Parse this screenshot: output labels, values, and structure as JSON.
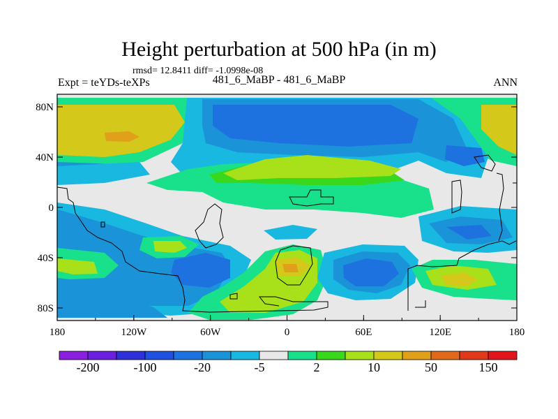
{
  "title": "Height perturbation at 500 hPa (in m)",
  "stats": "rmsd= 12.8411 diff= -1.0998e-08",
  "left_label": "Expt = teYDs-teXPs",
  "center_label": "481_6_MaBP - 481_6_MaBP",
  "right_label": "ANN",
  "x_axis": {
    "ticks": [
      {
        "lon": -180,
        "label": "180"
      },
      {
        "lon": -120,
        "label": "120W"
      },
      {
        "lon": -60,
        "label": "60W"
      },
      {
        "lon": 0,
        "label": "0"
      },
      {
        "lon": 60,
        "label": "60E"
      },
      {
        "lon": 120,
        "label": "120E"
      },
      {
        "lon": 180,
        "label": "180"
      }
    ]
  },
  "y_axis": {
    "ticks": [
      {
        "lat": 80,
        "label": "80N"
      },
      {
        "lat": 40,
        "label": "40N"
      },
      {
        "lat": 0,
        "label": "0"
      },
      {
        "lat": -40,
        "label": "40S"
      },
      {
        "lat": -80,
        "label": "80S"
      }
    ]
  },
  "colorbar": {
    "colors": [
      "#8a1fe0",
      "#6b20e0",
      "#3030d8",
      "#1f50e0",
      "#1e72e0",
      "#1a93d8",
      "#19b8e0",
      "#e8e8e8",
      "#19e08a",
      "#3ad81c",
      "#a8e01a",
      "#d4c81a",
      "#e0a01a",
      "#e06a1a",
      "#e03a1a",
      "#e0161a"
    ],
    "labels": [
      {
        "after_box": 1,
        "text": "-200"
      },
      {
        "after_box": 3,
        "text": "-100"
      },
      {
        "after_box": 5,
        "text": "-20"
      },
      {
        "after_box": 7,
        "text": "-5"
      },
      {
        "after_box": 9,
        "text": "2"
      },
      {
        "after_box": 11,
        "text": "10"
      },
      {
        "after_box": 13,
        "text": "50"
      },
      {
        "after_box": 15,
        "text": "150"
      }
    ]
  },
  "field_colors": {
    "white": "#e8e8e8",
    "c_dark": "#1e72e0",
    "c_mid": "#1a93d8",
    "c_light": "#19b8e0",
    "w_green": "#19e08a",
    "w_lime": "#3ad81c",
    "w_yellowgreen": "#a8e01a",
    "w_yellow": "#d4c81a",
    "w_orange": "#e0a01a"
  }
}
